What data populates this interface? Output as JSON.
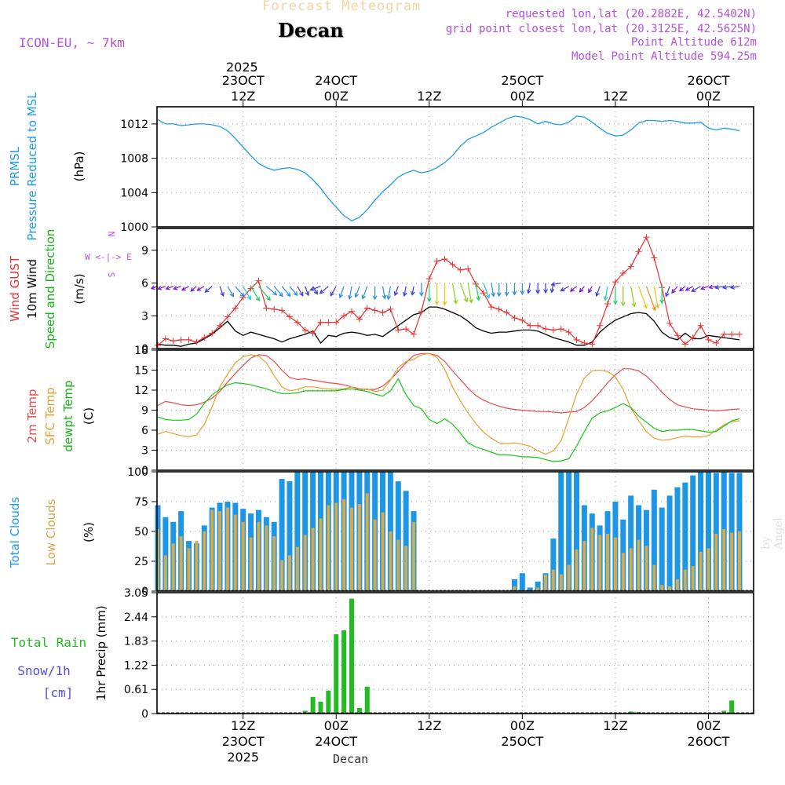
{
  "header": {
    "title": "Forecast Meteogram",
    "location": "Decan",
    "model": "ICON-EU, ~ 7km",
    "requested": "requested lon,lat (20.2882E, 42.5402N)",
    "gridpoint": "grid point closest lon,lat (20.3125E, 42.5625N)",
    "point_alt": "Point Altitude 612m",
    "model_alt": "Model Point Altitude 594.25m",
    "credit": "by Angel",
    "footer": "Decan"
  },
  "colors": {
    "pressure": "#1e9be6",
    "gust": "#e63232",
    "wind": "#000000",
    "temp": "#e84a4a",
    "sfc": "#e6a032",
    "dew": "#14c814",
    "total_clouds": "#1e96e6",
    "low_clouds": "#d2aa50",
    "rain": "#22bb22",
    "snow": "#5050dc",
    "purple": "#b450dc"
  },
  "time_axis": {
    "top_year": "2025",
    "ticks": [
      {
        "h": 11,
        "top": [
          "23OCT",
          "12Z"
        ],
        "bottom": [
          "12Z",
          "23OCT",
          "2025"
        ]
      },
      {
        "h": 23,
        "top": [
          "24OCT",
          "00Z"
        ],
        "bottom": [
          "00Z",
          "24OCT"
        ]
      },
      {
        "h": 35,
        "top": [
          "12Z"
        ],
        "bottom": [
          "12Z"
        ]
      },
      {
        "h": 47,
        "top": [
          "25OCT",
          "00Z"
        ],
        "bottom": [
          "00Z",
          "25OCT"
        ]
      },
      {
        "h": 59,
        "top": [
          "12Z"
        ],
        "bottom": [
          "12Z"
        ]
      },
      {
        "h": 71,
        "top": [
          "26OCT",
          "00Z"
        ],
        "bottom": [
          "00Z",
          "26OCT"
        ]
      }
    ]
  },
  "panels": {
    "pressure": {
      "labels": [
        "PRMSL",
        "Pressure Reduced to MSL"
      ],
      "unit": "(hPa)"
    },
    "wind": {
      "labels": [
        "Wind GUST",
        "10m Wind",
        "Speed and Direction"
      ],
      "unit": "(m/s)",
      "compass": [
        "N",
        "W <-|-> E",
        "S"
      ]
    },
    "temp": {
      "labels": [
        "2m Temp",
        "SFC Temp",
        "dewpt Temp"
      ],
      "unit": "(C)"
    },
    "clouds": {
      "labels": [
        "Total Clouds",
        "Low Clouds"
      ],
      "unit": "(%)"
    },
    "precip": {
      "labels": [
        "Total  Rain",
        "Snow/1h",
        "[cm]"
      ],
      "unit": "1hr Precip (mm)"
    }
  },
  "chart_data": [
    {
      "type": "line",
      "title": "PRMSL Pressure Reduced to MSL",
      "ylabel": "(hPa)",
      "x_unit": "hours since 2025-10-23 00Z",
      "ylim": [
        1000,
        1014
      ],
      "yticks": [
        "1000",
        "1004",
        "1008",
        "1012"
      ],
      "x": [
        0,
        1,
        2,
        3,
        4,
        5,
        6,
        7,
        8,
        9,
        10,
        11,
        12,
        13,
        14,
        15,
        16,
        17,
        18,
        19,
        20,
        21,
        22,
        23,
        24,
        25,
        26,
        27,
        28,
        29,
        30,
        31,
        32,
        33,
        34,
        35,
        36,
        37,
        38,
        39,
        40,
        41,
        42,
        43,
        44,
        45,
        46,
        47,
        48,
        49,
        50,
        51,
        52,
        53,
        54,
        55,
        56,
        57,
        58,
        59,
        60,
        61,
        62,
        63,
        64,
        65,
        66,
        67,
        68,
        69,
        70,
        71,
        72,
        73,
        74,
        75
      ],
      "values": [
        1012.5,
        1012.0,
        1012.0,
        1011.8,
        1011.9,
        1012.0,
        1012.0,
        1011.9,
        1011.7,
        1011.2,
        1010.3,
        1009.3,
        1008.3,
        1007.4,
        1006.9,
        1006.6,
        1006.8,
        1006.9,
        1006.7,
        1006.3,
        1005.5,
        1004.5,
        1003.3,
        1002.3,
        1001.3,
        1000.7,
        1001.1,
        1002.0,
        1003.1,
        1004.1,
        1004.9,
        1005.8,
        1006.3,
        1006.6,
        1006.3,
        1006.5,
        1006.9,
        1007.5,
        1008.3,
        1009.4,
        1010.2,
        1010.6,
        1011.0,
        1011.6,
        1012.1,
        1012.6,
        1012.9,
        1012.8,
        1012.5,
        1012.0,
        1012.3,
        1012.0,
        1011.9,
        1012.2,
        1012.9,
        1012.8,
        1012.2,
        1011.5,
        1010.9,
        1010.6,
        1010.7,
        1011.3,
        1012.1,
        1012.4,
        1012.4,
        1012.3,
        1012.4,
        1012.3,
        1012.1,
        1012.1,
        1012.2,
        1011.5,
        1011.3,
        1011.5,
        1011.4,
        1011.2
      ]
    },
    {
      "type": "line",
      "title": "Wind GUST / 10m Wind Speed and Direction",
      "ylabel": "(m/s)",
      "x_unit": "hours since 2025-10-23 00Z",
      "ylim": [
        0,
        11
      ],
      "yticks": [
        "0",
        "3",
        "6",
        "9"
      ],
      "series": [
        {
          "name": "Wind GUST",
          "values": [
            0.3,
            0.9,
            0.7,
            0.8,
            0.8,
            0.6,
            1.0,
            1.4,
            2.1,
            2.9,
            3.7,
            4.7,
            5.5,
            6.2,
            3.7,
            3.6,
            3.5,
            2.9,
            2.4,
            1.7,
            1.4,
            2.4,
            2.4,
            2.4,
            3.0,
            3.4,
            2.7,
            3.7,
            3.5,
            3.3,
            3.6,
            1.7,
            1.8,
            1.3,
            3.4,
            6.4,
            8.0,
            8.2,
            7.7,
            7.2,
            7.3,
            5.9,
            5.1,
            3.8,
            3.6,
            3.3,
            2.8,
            2.6,
            2.1,
            2.1,
            1.8,
            1.7,
            1.8,
            1.5,
            0.8,
            0.5,
            0.4,
            2.1,
            4.1,
            6.1,
            6.9,
            7.5,
            8.9,
            10.2,
            8.3,
            5.6,
            2.3,
            1.2,
            0.4,
            1.0,
            2.1,
            0.8,
            0.5,
            1.3,
            1.3,
            1.3
          ]
        },
        {
          "name": "10m Wind",
          "values": [
            0.4,
            0.3,
            0.3,
            0.2,
            0.4,
            0.5,
            0.9,
            1.3,
            1.9,
            2.5,
            1.6,
            1.2,
            1.5,
            1.3,
            1.1,
            0.9,
            0.6,
            0.9,
            1.1,
            1.3,
            1.6,
            0.5,
            1.2,
            1.1,
            1.4,
            1.5,
            1.4,
            1.2,
            1.3,
            1.1,
            1.6,
            2.1,
            2.6,
            3.1,
            3.3,
            3.8,
            3.8,
            3.6,
            3.3,
            3.0,
            2.5,
            1.9,
            1.6,
            1.4,
            1.5,
            1.5,
            1.6,
            1.7,
            1.7,
            1.6,
            1.3,
            1.0,
            0.8,
            0.6,
            0.3,
            0.3,
            0.6,
            1.5,
            2.1,
            2.6,
            2.9,
            3.2,
            3.3,
            3.2,
            2.5,
            1.5,
            1.0,
            0.8,
            1.4,
            0.9,
            0.9,
            1.2,
            1.1,
            1.0,
            0.9,
            0.8
          ]
        }
      ],
      "arrows_dir_deg": [
        250,
        250,
        250,
        250,
        240,
        230,
        240,
        230,
        160,
        150,
        140,
        150,
        150,
        140,
        130,
        140,
        140,
        140,
        150,
        160,
        150,
        250,
        230,
        210,
        200,
        190,
        200,
        200,
        180,
        170,
        190,
        200,
        190,
        190,
        180,
        180,
        180,
        180,
        170,
        160,
        170,
        170,
        160,
        170,
        180,
        180,
        180,
        180,
        190,
        180,
        180,
        190,
        260,
        240,
        230,
        220,
        210,
        200,
        190,
        180,
        180,
        170,
        160,
        160,
        170,
        180,
        200,
        220,
        230,
        240,
        240,
        250,
        260,
        260,
        260,
        260
      ]
    },
    {
      "type": "line",
      "title": "2m Temp / SFC Temp / dewpt Temp",
      "ylabel": "(C)",
      "x_unit": "hours since 2025-10-23 00Z",
      "ylim": [
        0,
        18
      ],
      "yticks": [
        "0",
        "3",
        "6",
        "9",
        "12",
        "15",
        "18"
      ],
      "series": [
        {
          "name": "2m Temp",
          "values": [
            9.7,
            10.3,
            10.1,
            9.8,
            9.7,
            9.8,
            10.2,
            10.8,
            11.8,
            13.2,
            14.5,
            15.7,
            16.8,
            17.3,
            17.2,
            16.3,
            15.0,
            13.9,
            13.6,
            13.7,
            13.5,
            13.3,
            13.1,
            13.0,
            12.8,
            12.5,
            12.2,
            12.1,
            12.1,
            12.6,
            13.6,
            14.8,
            16.1,
            17.2,
            17.5,
            17.5,
            17.2,
            16.3,
            14.9,
            13.6,
            12.3,
            11.2,
            10.5,
            10.0,
            9.6,
            9.3,
            9.1,
            9.0,
            8.9,
            8.8,
            8.8,
            8.7,
            8.6,
            8.7,
            8.8,
            9.4,
            10.4,
            11.7,
            13.1,
            14.3,
            15.2,
            15.2,
            14.9,
            14.1,
            13.0,
            11.7,
            10.6,
            9.8,
            9.5,
            9.2,
            9.1,
            9.0,
            8.9,
            9.0,
            9.1,
            9.2
          ]
        },
        {
          "name": "SFC Temp",
          "values": [
            5.4,
            5.8,
            5.5,
            5.2,
            5.0,
            5.3,
            6.9,
            9.5,
            12.5,
            14.4,
            16.1,
            17.0,
            17.3,
            17.1,
            16.1,
            14.2,
            12.5,
            11.9,
            12.1,
            12.5,
            12.5,
            12.3,
            12.2,
            12.1,
            12.2,
            12.5,
            12.0,
            12.2,
            11.8,
            12.0,
            13.5,
            15.4,
            16.3,
            16.6,
            17.3,
            17.5,
            16.9,
            15.1,
            12.5,
            10.4,
            8.6,
            7.0,
            5.7,
            4.8,
            4.1,
            4.0,
            4.1,
            3.9,
            3.6,
            2.9,
            2.4,
            2.9,
            4.4,
            7.8,
            11.4,
            13.8,
            14.9,
            15.0,
            14.8,
            14.0,
            12.1,
            9.3,
            7.4,
            5.8,
            4.8,
            4.5,
            4.6,
            4.9,
            5.1,
            5.0,
            5.0,
            5.2,
            6.0,
            6.8,
            7.3,
            7.4
          ]
        },
        {
          "name": "dewpt Temp",
          "values": [
            8.0,
            7.6,
            7.5,
            7.5,
            7.6,
            8.4,
            10.0,
            11.3,
            12.1,
            12.8,
            13.1,
            13.0,
            12.8,
            12.5,
            12.2,
            11.8,
            11.5,
            11.5,
            11.6,
            11.9,
            11.9,
            11.9,
            11.9,
            11.9,
            12.1,
            12.2,
            12.0,
            11.8,
            11.4,
            11.1,
            11.9,
            13.7,
            11.3,
            9.7,
            9.2,
            7.6,
            7.0,
            7.7,
            6.9,
            5.6,
            4.1,
            3.5,
            3.1,
            2.7,
            2.3,
            2.3,
            2.2,
            2.0,
            2.0,
            1.9,
            1.6,
            1.3,
            1.4,
            1.7,
            3.6,
            5.8,
            7.8,
            8.6,
            8.9,
            9.4,
            10.0,
            9.4,
            8.1,
            7.2,
            6.3,
            5.8,
            6.0,
            6.0,
            6.1,
            6.1,
            5.9,
            5.7,
            5.8,
            6.6,
            7.4,
            7.7
          ]
        }
      ]
    },
    {
      "type": "bar",
      "title": "Total Clouds / Low Clouds",
      "ylabel": "(%)",
      "x_unit": "hours since 2025-10-23 00Z",
      "ylim": [
        0,
        100
      ],
      "yticks": [
        "0",
        "25",
        "50",
        "75",
        "100"
      ],
      "series": [
        {
          "name": "Total Clouds",
          "values": [
            72,
            62,
            58,
            67,
            42,
            40,
            55,
            70,
            74,
            75,
            74,
            69,
            65,
            68,
            62,
            58,
            94,
            92,
            100,
            100,
            100,
            100,
            100,
            100,
            100,
            100,
            100,
            100,
            100,
            100,
            100,
            92,
            84,
            67,
            0,
            0,
            0,
            0,
            0,
            0,
            0,
            0,
            0,
            0,
            0,
            0,
            10,
            15,
            3,
            8,
            15,
            44,
            100,
            100,
            100,
            72,
            65,
            55,
            67,
            75,
            60,
            80,
            72,
            68,
            85,
            70,
            80,
            87,
            91,
            97,
            100,
            100,
            99,
            100,
            99,
            99
          ]
        },
        {
          "name": "Low Clouds",
          "values": [
            52,
            30,
            40,
            46,
            36,
            42,
            50,
            68,
            67,
            70,
            64,
            58,
            45,
            58,
            55,
            46,
            26,
            30,
            37,
            47,
            53,
            61,
            72,
            74,
            77,
            70,
            73,
            82,
            60,
            66,
            50,
            43,
            38,
            58,
            0,
            0,
            0,
            0,
            0,
            0,
            0,
            0,
            0,
            0,
            0,
            0,
            4,
            0,
            0,
            3,
            14,
            18,
            14,
            22,
            35,
            42,
            53,
            47,
            48,
            45,
            32,
            36,
            43,
            38,
            22,
            5,
            4,
            10,
            18,
            21,
            33,
            36,
            48,
            52,
            49,
            50
          ]
        }
      ]
    },
    {
      "type": "bar",
      "title": "1hr Precip (mm)",
      "ylabel": "1hr Precip (mm)",
      "x_unit": "hours since 2025-10-23 00Z",
      "ylim": [
        0,
        3.05
      ],
      "yticks": [
        "0",
        "0.61",
        "1.22",
        "1.83",
        "2.44",
        "3.05"
      ],
      "series": [
        {
          "name": "Total Rain",
          "values": [
            0,
            0,
            0,
            0,
            0,
            0,
            0,
            0,
            0,
            0,
            0,
            0,
            0,
            0,
            0,
            0,
            0,
            0,
            0,
            0.07,
            0.42,
            0.3,
            0.58,
            2.0,
            2.1,
            2.9,
            0.14,
            0.68,
            0,
            0,
            0,
            0,
            0,
            0,
            0,
            0,
            0,
            0,
            0,
            0,
            0,
            0,
            0,
            0,
            0,
            0,
            0,
            0,
            0,
            0,
            0,
            0,
            0,
            0,
            0,
            0,
            0,
            0,
            0,
            0,
            0,
            0.05,
            0.04,
            0,
            0,
            0,
            0,
            0,
            0,
            0,
            0,
            0,
            0,
            0.07,
            0.33,
            0
          ]
        },
        {
          "name": "Snow/1h",
          "values": [
            0,
            0,
            0,
            0,
            0,
            0,
            0,
            0,
            0,
            0,
            0,
            0,
            0,
            0,
            0,
            0,
            0,
            0,
            0,
            0,
            0,
            0,
            0,
            0,
            0,
            0,
            0,
            0,
            0,
            0,
            0,
            0,
            0,
            0,
            0,
            0,
            0,
            0,
            0,
            0,
            0,
            0,
            0,
            0,
            0,
            0,
            0,
            0,
            0,
            0,
            0,
            0,
            0,
            0,
            0,
            0,
            0,
            0,
            0,
            0,
            0,
            0,
            0,
            0,
            0,
            0,
            0,
            0,
            0,
            0,
            0,
            0,
            0,
            0,
            0,
            0
          ]
        }
      ]
    }
  ]
}
